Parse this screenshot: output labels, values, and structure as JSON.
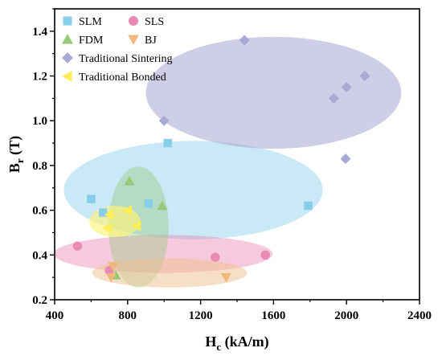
{
  "chart_data": {
    "type": "scatter",
    "xlabel": {
      "main": "H",
      "sub": "c",
      "rest": " (kA/m)"
    },
    "ylabel": {
      "main": "B",
      "sub": "r",
      "rest": " (T)"
    },
    "xlim": [
      400,
      2400
    ],
    "ylim": [
      0.2,
      1.5
    ],
    "xticks": [
      400,
      800,
      1200,
      1600,
      2000,
      2400
    ],
    "yticks": [
      0.2,
      0.4,
      0.6,
      0.8,
      1.0,
      1.2,
      1.4
    ],
    "xtick_labels": [
      "400",
      "800",
      "1200",
      "1600",
      "2000",
      "2400"
    ],
    "ytick_labels": [
      "0.2",
      "0.4",
      "0.6",
      "0.8",
      "1.0",
      "1.2",
      "1.4"
    ],
    "legend_position": "top-left",
    "series": [
      {
        "name": "SLM",
        "marker": "square",
        "color": "#87ceeb",
        "points": [
          [
            600,
            0.65
          ],
          [
            665,
            0.59
          ],
          [
            915,
            0.63
          ],
          [
            1020,
            0.9
          ],
          [
            1790,
            0.62
          ]
        ],
        "ellipse": {
          "cx": 1160,
          "cy": 0.69,
          "rx": 710,
          "ry": 0.22,
          "color": "#87ceeb",
          "opacity": 0.45
        }
      },
      {
        "name": "SLS",
        "marker": "circle",
        "color": "#e88ab3",
        "points": [
          [
            525,
            0.44
          ],
          [
            700,
            0.33
          ],
          [
            1280,
            0.39
          ],
          [
            1555,
            0.4
          ]
        ],
        "ellipse": {
          "cx": 995,
          "cy": 0.405,
          "rx": 600,
          "ry": 0.085,
          "color": "#e88ab3",
          "opacity": 0.45
        }
      },
      {
        "name": "FDM",
        "marker": "triangle-up",
        "color": "#96c87a",
        "points": [
          [
            810,
            0.73
          ],
          [
            990,
            0.62
          ],
          [
            735,
            0.31
          ]
        ],
        "ellipse": {
          "cx": 860,
          "cy": 0.525,
          "rx": 165,
          "ry": 0.27,
          "color": "#96c87a",
          "opacity": 0.4
        }
      },
      {
        "name": "BJ",
        "marker": "triangle-down",
        "color": "#f0b87a",
        "points": [
          [
            710,
            0.3
          ],
          [
            720,
            0.35
          ],
          [
            1340,
            0.3
          ]
        ],
        "ellipse": {
          "cx": 1030,
          "cy": 0.32,
          "rx": 425,
          "ry": 0.065,
          "color": "#f0c08e",
          "opacity": 0.5
        }
      },
      {
        "name": "Traditional Sintering",
        "marker": "diamond",
        "color": "#a9a9d6",
        "points": [
          [
            1440,
            1.36
          ],
          [
            1000,
            1.0
          ],
          [
            1930,
            1.1
          ],
          [
            2000,
            1.15
          ],
          [
            2100,
            1.2
          ],
          [
            1995,
            0.83
          ]
        ],
        "ellipse": {
          "cx": 1600,
          "cy": 1.125,
          "rx": 700,
          "ry": 0.25,
          "color": "#a5a5d2",
          "opacity": 0.55
        }
      },
      {
        "name": "Traditional Bonded",
        "marker": "triangle-left",
        "color": "#ffee55",
        "points": [
          [
            700,
            0.58
          ],
          [
            800,
            0.6
          ],
          [
            850,
            0.53
          ],
          [
            690,
            0.52
          ]
        ],
        "ellipse": {
          "cx": 730,
          "cy": 0.55,
          "rx": 140,
          "ry": 0.07,
          "color": "#fff27a",
          "opacity": 0.65
        }
      }
    ]
  }
}
